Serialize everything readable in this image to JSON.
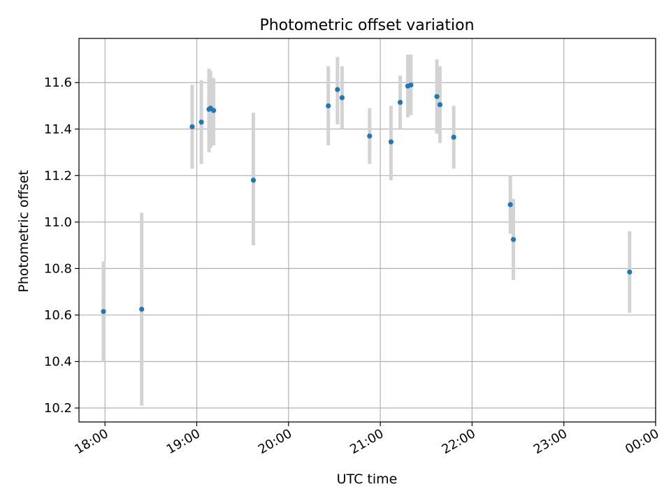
{
  "chart_data": {
    "type": "scatter",
    "title": "Photometric offset variation",
    "xlabel": "UTC time",
    "ylabel": "Photometric offset",
    "xlim": [
      "17:43",
      "00:00"
    ],
    "ylim": [
      10.14,
      11.79
    ],
    "x_ticks": [
      "18:00",
      "19:00",
      "20:00",
      "21:00",
      "22:00",
      "23:00",
      "00:00"
    ],
    "y_ticks": [
      "10.2",
      "10.4",
      "10.6",
      "10.8",
      "11.0",
      "11.2",
      "11.4",
      "11.6"
    ],
    "grid": true,
    "colors": {
      "point": "#1f77b4",
      "errorbar": "#d3d3d3",
      "grid": "#b0b0b0"
    },
    "series": [
      {
        "points": [
          {
            "x": "17:59",
            "y": 10.615,
            "ylo": 10.4,
            "yhi": 10.83
          },
          {
            "x": "18:24",
            "y": 10.625,
            "ylo": 10.21,
            "yhi": 11.04
          },
          {
            "x": "18:57",
            "y": 11.41,
            "ylo": 11.23,
            "yhi": 11.59
          },
          {
            "x": "19:03",
            "y": 11.43,
            "ylo": 11.25,
            "yhi": 11.61
          },
          {
            "x": "19:08",
            "y": 11.485,
            "ylo": 11.3,
            "yhi": 11.66
          },
          {
            "x": "19:09",
            "y": 11.49,
            "ylo": 11.32,
            "yhi": 11.65
          },
          {
            "x": "19:11",
            "y": 11.48,
            "ylo": 11.33,
            "yhi": 11.62
          },
          {
            "x": "19:37",
            "y": 11.18,
            "ylo": 10.9,
            "yhi": 11.47
          },
          {
            "x": "20:26",
            "y": 11.5,
            "ylo": 11.33,
            "yhi": 11.67
          },
          {
            "x": "20:32",
            "y": 11.57,
            "ylo": 11.42,
            "yhi": 11.71
          },
          {
            "x": "20:35",
            "y": 11.535,
            "ylo": 11.4,
            "yhi": 11.67
          },
          {
            "x": "20:53",
            "y": 11.37,
            "ylo": 11.25,
            "yhi": 11.49
          },
          {
            "x": "21:07",
            "y": 11.345,
            "ylo": 11.18,
            "yhi": 11.5
          },
          {
            "x": "21:13",
            "y": 11.515,
            "ylo": 11.4,
            "yhi": 11.63
          },
          {
            "x": "21:18",
            "y": 11.585,
            "ylo": 11.45,
            "yhi": 11.72
          },
          {
            "x": "21:20",
            "y": 11.59,
            "ylo": 11.46,
            "yhi": 11.72
          },
          {
            "x": "21:37",
            "y": 11.54,
            "ylo": 11.38,
            "yhi": 11.7
          },
          {
            "x": "21:39",
            "y": 11.505,
            "ylo": 11.34,
            "yhi": 11.67
          },
          {
            "x": "21:48",
            "y": 11.365,
            "ylo": 11.23,
            "yhi": 11.5
          },
          {
            "x": "22:25",
            "y": 11.075,
            "ylo": 10.95,
            "yhi": 11.2
          },
          {
            "x": "22:27",
            "y": 10.925,
            "ylo": 10.75,
            "yhi": 11.1
          },
          {
            "x": "23:43",
            "y": 10.785,
            "ylo": 10.61,
            "yhi": 10.96
          }
        ]
      }
    ]
  }
}
